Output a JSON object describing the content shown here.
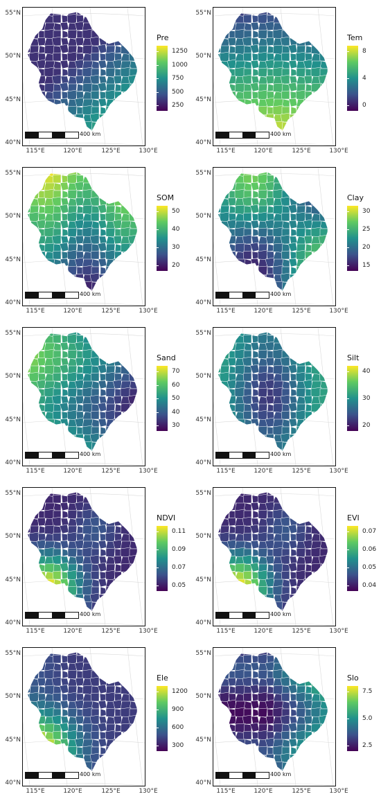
{
  "axes": {
    "lat_ticks": [
      "55°N",
      "50°N",
      "45°N",
      "40°N"
    ],
    "lon_ticks": [
      "115°E",
      "120°E",
      "125°E",
      "130°E"
    ]
  },
  "scale_bar": {
    "label": "400 km"
  },
  "colormap": [
    "#440154",
    "#3b528b",
    "#21918c",
    "#5ec962",
    "#fde725"
  ],
  "panels": [
    {
      "id": "pre",
      "title": "Pre",
      "ticks": [
        "1250",
        "1000",
        "750",
        "500",
        "250"
      ],
      "pattern": "southeast-high"
    },
    {
      "id": "tem",
      "title": "Tem",
      "ticks": [
        "8",
        "4",
        "0"
      ],
      "pattern": "south-high"
    },
    {
      "id": "som",
      "title": "SOM",
      "ticks": [
        "50",
        "40",
        "30",
        "20"
      ],
      "pattern": "north-high"
    },
    {
      "id": "clay",
      "title": "Clay",
      "ticks": [
        "30",
        "25",
        "20",
        "15"
      ],
      "pattern": "center-mid"
    },
    {
      "id": "sand",
      "title": "Sand",
      "ticks": [
        "70",
        "60",
        "50",
        "40",
        "30"
      ],
      "pattern": "west-high"
    },
    {
      "id": "silt",
      "title": "Silt",
      "ticks": [
        "40",
        "30",
        "20"
      ],
      "pattern": "mid-low"
    },
    {
      "id": "ndvi",
      "title": "NDVI",
      "ticks": [
        "0.11",
        "0.09",
        "0.07",
        "0.05"
      ],
      "pattern": "southwest-high"
    },
    {
      "id": "evi",
      "title": "EVI",
      "ticks": [
        "0.07",
        "0.06",
        "0.05",
        "0.04"
      ],
      "pattern": "southwest-high"
    },
    {
      "id": "ele",
      "title": "Ele",
      "ticks": [
        "1200",
        "900",
        "600",
        "300"
      ],
      "pattern": "west-high-ele"
    },
    {
      "id": "slo",
      "title": "Slo",
      "ticks": [
        "7.5",
        "5.0",
        "2.5"
      ],
      "pattern": "east-high"
    }
  ]
}
